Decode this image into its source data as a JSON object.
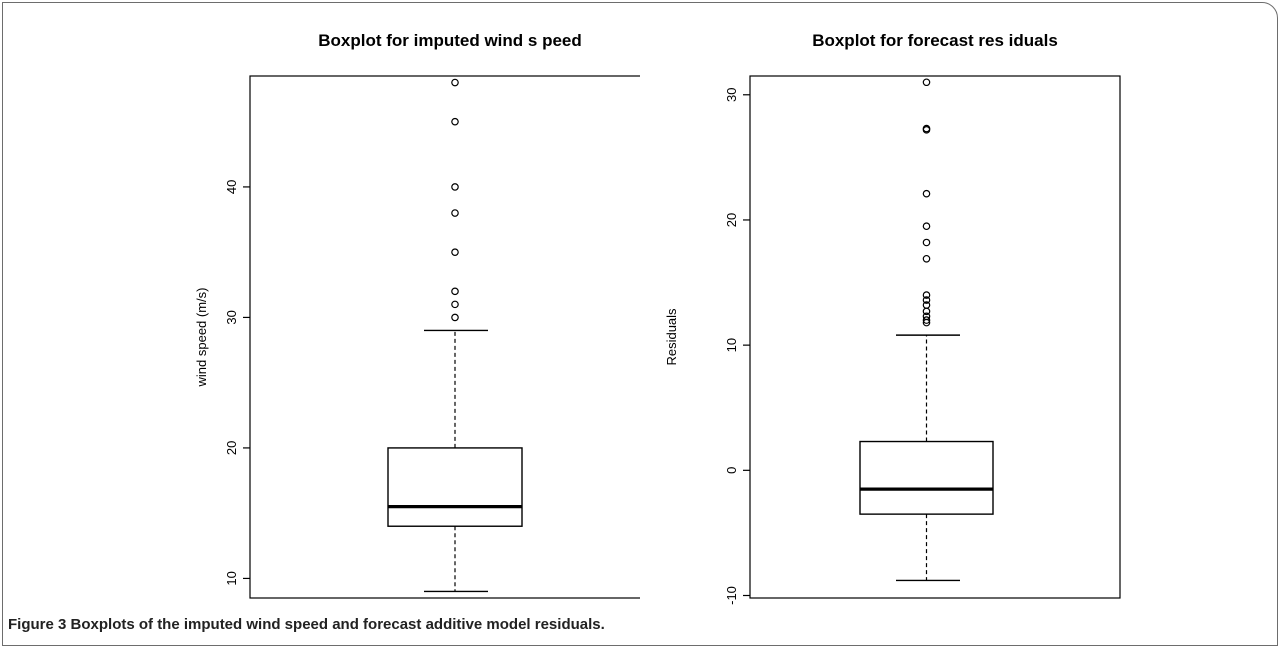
{
  "figure": {
    "label": "Figure 3",
    "caption": "Boxplots of the imputed wind speed and forecast additive model residuals."
  },
  "chart_data": [
    {
      "type": "boxplot",
      "title": "Boxplot for imputed wind s peed",
      "xlabel": "",
      "ylabel": "wind speed (m/s)",
      "ylim": [
        8.5,
        48.5
      ],
      "yticks": [
        10,
        20,
        30,
        40
      ],
      "box": {
        "whisker_low": 9,
        "q1": 14,
        "median": 15.5,
        "q3": 20,
        "whisker_high": 29
      },
      "outliers": [
        30,
        31,
        32,
        35,
        38,
        40,
        45,
        48
      ]
    },
    {
      "type": "boxplot",
      "title": "Boxplot for forecast res iduals",
      "xlabel": "",
      "ylabel": "Residuals",
      "ylim": [
        -10.2,
        31.5
      ],
      "yticks": [
        -10,
        0,
        10,
        20,
        30
      ],
      "box": {
        "whisker_low": -8.8,
        "q1": -3.5,
        "median": -1.5,
        "q3": 2.3,
        "whisker_high": 10.8
      },
      "outliers": [
        11.8,
        12.0,
        12.3,
        12.7,
        13.2,
        13.6,
        14.0,
        16.9,
        18.2,
        19.5,
        22.1,
        27.2,
        27.3,
        31.0
      ]
    }
  ]
}
